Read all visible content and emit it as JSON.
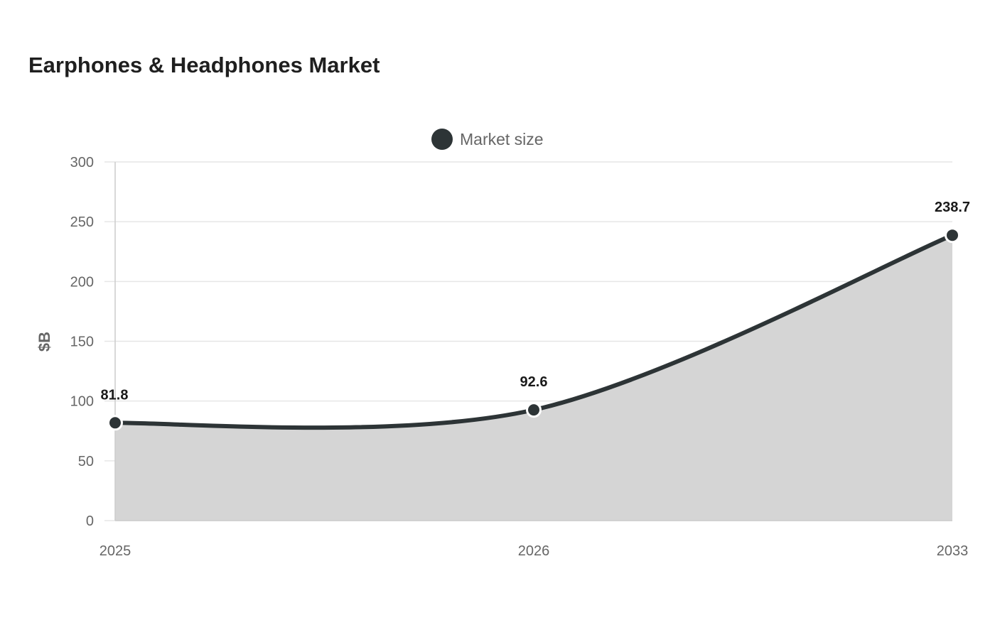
{
  "chart_data": {
    "type": "area",
    "title": "Earphones & Headphones Market",
    "categories": [
      "2025",
      "2026",
      "2033"
    ],
    "series": [
      {
        "name": "Market size",
        "values": [
          81.8,
          92.6,
          238.7
        ],
        "labels": [
          "81.8",
          "92.6",
          "238.7"
        ]
      }
    ],
    "xlabel": "",
    "ylabel": "$B",
    "ylim": [
      0,
      300
    ],
    "yticks": [
      0,
      50,
      100,
      150,
      200,
      250,
      300
    ],
    "grid": true,
    "legend_position": "top",
    "colors": {
      "line": "#2d3436",
      "fill": "#d5d5d5",
      "grid": "#e6e6e6",
      "axis": "#cccccc",
      "marker_stroke": "#ffffff"
    }
  }
}
